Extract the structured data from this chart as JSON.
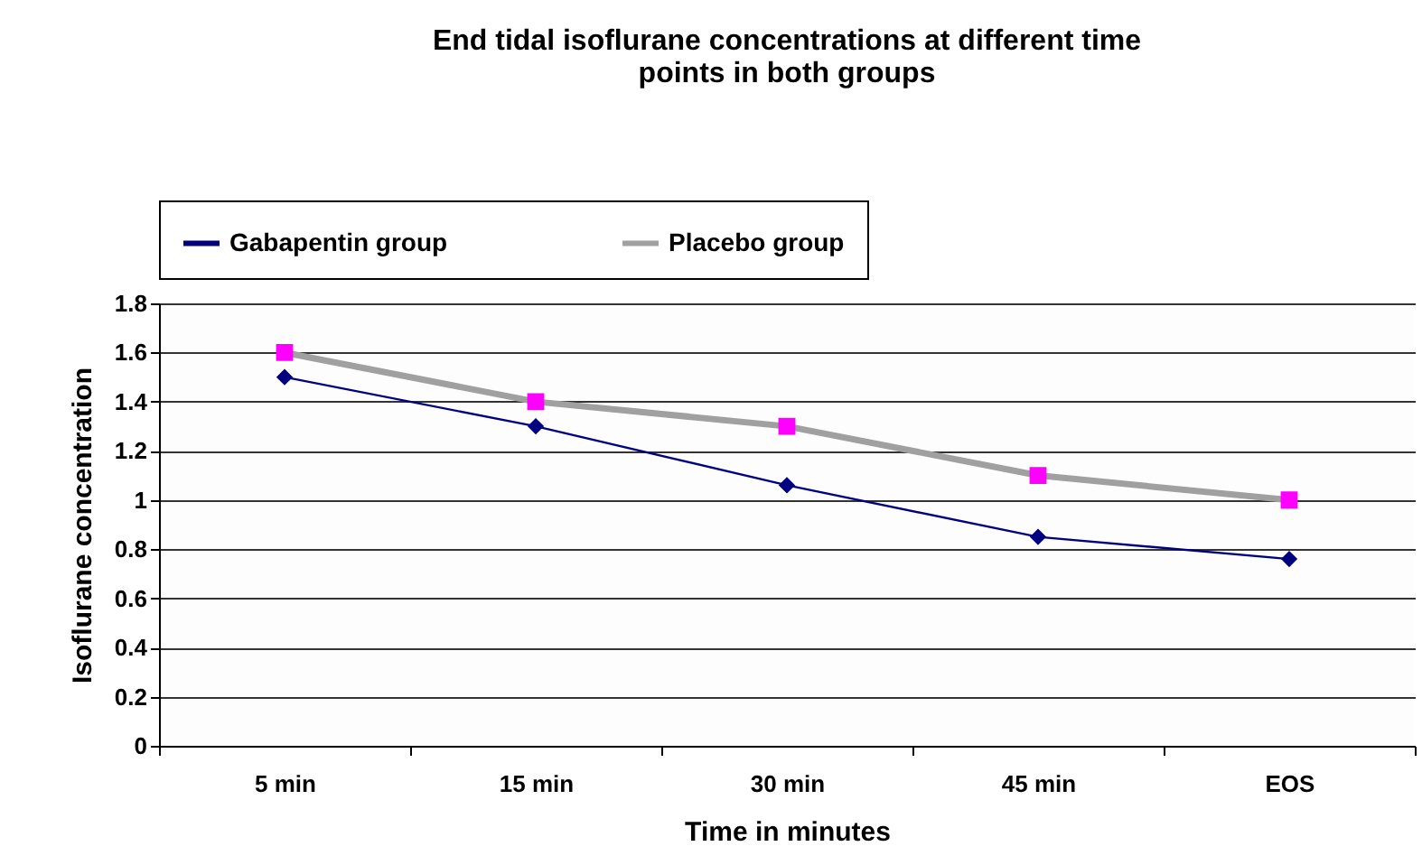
{
  "chart_data": {
    "type": "line",
    "title": "End tidal isoflurane concentrations at different time points in both groups",
    "xlabel": "Time in minutes",
    "ylabel": "Isoflurane concentration",
    "categories": [
      "5 min",
      "15 min",
      "30 min",
      "45 min",
      "EOS"
    ],
    "series": [
      {
        "name": "Gabapentin group",
        "color": "#000080",
        "marker": "diamond",
        "values": [
          1.5,
          1.3,
          1.06,
          0.85,
          0.76
        ]
      },
      {
        "name": "Placebo group",
        "color": "#a0a0a0",
        "marker": "square",
        "colors": [
          "#ff00ff",
          "#ff00ff",
          "#ff00ff",
          "#ff00ff",
          "#ff00ff"
        ],
        "values": [
          1.6,
          1.4,
          1.3,
          1.1,
          1.0
        ]
      }
    ],
    "ylim": [
      0,
      1.8
    ],
    "yticks": [
      0,
      0.2,
      0.4,
      0.6,
      0.8,
      1,
      1.2,
      1.4,
      1.6,
      1.8
    ],
    "grid": "y",
    "legend": "top",
    "line_style": "solid"
  }
}
